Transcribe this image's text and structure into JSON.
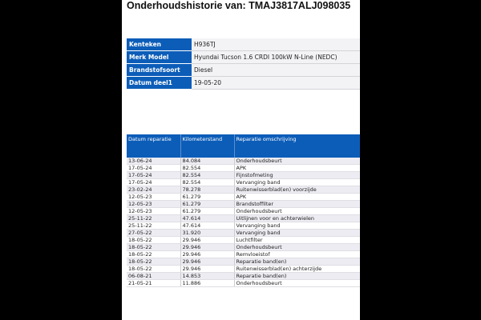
{
  "title": "Onderhoudshistorie van: TMAJ3817ALJ098035",
  "vehicle": [
    {
      "label": "Kenteken",
      "value": "H936TJ"
    },
    {
      "label": "Merk Model",
      "value": "Hyundai Tucson 1.6 CRDI 100kW N-Line (NEDC)"
    },
    {
      "label": "Brandstofsoort",
      "value": "Diesel"
    },
    {
      "label": "Datum deel1",
      "value": "19-05-20"
    }
  ],
  "history": {
    "headers": [
      "Datum reparatie",
      "Kilometerstand",
      "Reparatie omschrijving"
    ],
    "rows": [
      [
        "13-06-24",
        "84.084",
        "Onderhoudsbeurt"
      ],
      [
        "17-05-24",
        "82.554",
        "APK"
      ],
      [
        "17-05-24",
        "82.554",
        "Fijnstofmeting"
      ],
      [
        "17-05-24",
        "82.554",
        "Vervanging band"
      ],
      [
        "23-02-24",
        "78.278",
        "Ruitenwisserblad(en) voorzijde"
      ],
      [
        "12-05-23",
        "61.279",
        "APK"
      ],
      [
        "12-05-23",
        "61.279",
        "Brandstoffilter"
      ],
      [
        "12-05-23",
        "61.279",
        "Onderhoudsbeurt"
      ],
      [
        "25-11-22",
        "47.614",
        "Uitlijnen voor en achterwielen"
      ],
      [
        "25-11-22",
        "47.614",
        "Vervanging band"
      ],
      [
        "27-05-22",
        "31.920",
        "Vervanging band"
      ],
      [
        "18-05-22",
        "29.946",
        "Luchtfilter"
      ],
      [
        "18-05-22",
        "29.946",
        "Onderhoudsbeurt"
      ],
      [
        "18-05-22",
        "29.946",
        "Remvloeistof"
      ],
      [
        "18-05-22",
        "29.946",
        "Reparatie band(en)"
      ],
      [
        "18-05-22",
        "29.946",
        "Ruitenwisserblad(en) achterzijde"
      ],
      [
        "06-08-21",
        "14.853",
        "Reparatie band(en)"
      ],
      [
        "21-05-21",
        "11.886",
        "Onderhoudsbeurt"
      ]
    ]
  }
}
